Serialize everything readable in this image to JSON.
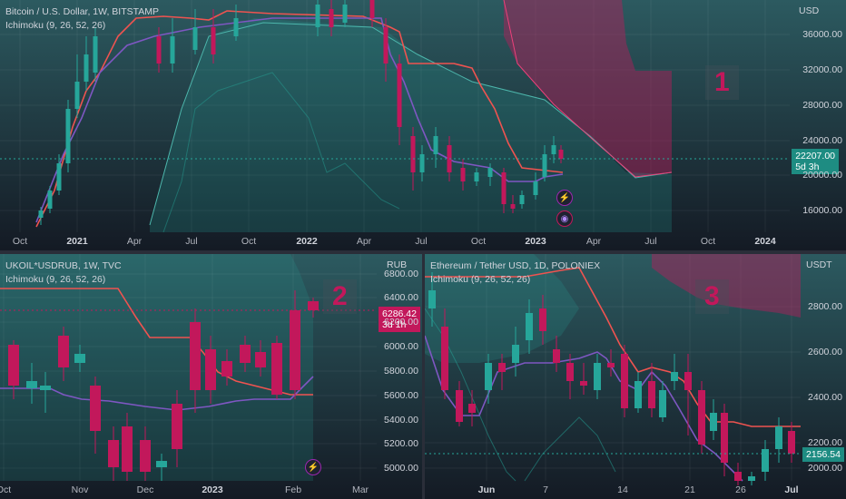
{
  "panel1": {
    "title": "Bitcoin / U.S. Dollar, 1W, BITSTAMP",
    "indicator": "Ichimoku (9, 26, 52, 26)",
    "currency": "USD",
    "price_ticks": [
      "36000.00",
      "32000.00",
      "28000.00",
      "24000.00",
      "20000.00",
      "16000.00"
    ],
    "last_price": "22207.00",
    "countdown": "5d 3h",
    "time_ticks": [
      {
        "label": "Oct",
        "year": false
      },
      {
        "label": "2021",
        "year": true
      },
      {
        "label": "Apr",
        "year": false
      },
      {
        "label": "Jul",
        "year": false
      },
      {
        "label": "Oct",
        "year": false
      },
      {
        "label": "2022",
        "year": true
      },
      {
        "label": "Apr",
        "year": false
      },
      {
        "label": "Jul",
        "year": false
      },
      {
        "label": "Oct",
        "year": false
      },
      {
        "label": "2023",
        "year": true
      },
      {
        "label": "Apr",
        "year": false
      },
      {
        "label": "Jul",
        "year": false
      },
      {
        "label": "Oct",
        "year": false
      },
      {
        "label": "2024",
        "year": true
      }
    ],
    "badge": "1"
  },
  "panel2": {
    "title": "UKOIL*USDRUB, 1W, TVC",
    "indicator": "Ichimoku (9, 26, 52, 26)",
    "currency": "RUB",
    "price_ticks": [
      "6800.00",
      "6400.00",
      "6200.00",
      "6000.00",
      "5800.00",
      "5600.00",
      "5400.00",
      "5200.00",
      "5000.00"
    ],
    "last_price": "6286.42",
    "countdown": "3d 1h",
    "time_ticks": [
      {
        "label": "Oct",
        "year": false
      },
      {
        "label": "Nov",
        "year": false
      },
      {
        "label": "Dec",
        "year": false
      },
      {
        "label": "2023",
        "year": true
      },
      {
        "label": "Feb",
        "year": false
      },
      {
        "label": "Mar",
        "year": false
      }
    ],
    "badge": "2"
  },
  "panel3": {
    "title": "Ethereum / Tether USD, 1D, POLONIEX",
    "indicator": "Ichimoku (9, 26, 52, 26)",
    "currency": "USDT",
    "price_ticks": [
      "2800.00",
      "2600.00",
      "2400.00",
      "2200.00",
      "2000.00"
    ],
    "last_price": "2156.54",
    "time_ticks": [
      {
        "label": "Jun",
        "year": true
      },
      {
        "label": "7",
        "year": false
      },
      {
        "label": "14",
        "year": false
      },
      {
        "label": "21",
        "year": false
      },
      {
        "label": "26",
        "year": false
      },
      {
        "label": "Jul",
        "year": true
      }
    ],
    "badge": "3"
  },
  "colors": {
    "background": "#131722",
    "bull": "#26a69a",
    "bear": "#c2185b",
    "kijun": "#ef5350",
    "tenkan": "#7e57c2",
    "cloud_bull": "#26a69a",
    "cloud_bear": "#b71c5a",
    "event_icon": "#9c27b0"
  },
  "icons": {
    "event1": "lightning-icon",
    "event2": "flag-icon",
    "event3": "lightning-icon"
  }
}
